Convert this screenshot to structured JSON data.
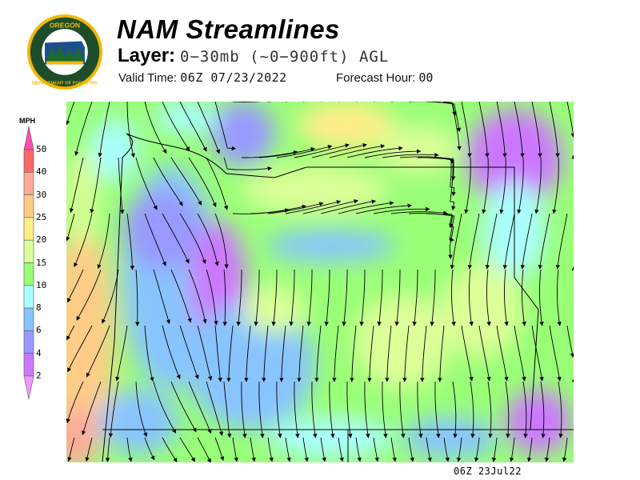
{
  "logo": {
    "text_top": "OREGON",
    "text_bottom": "DEPARTMENT OF FORESTRY",
    "colors": {
      "ring": "#f2b700",
      "field": "#1d4d2a",
      "sky": "#1f4f8f"
    }
  },
  "header": {
    "title": "NAM Streamlines",
    "layer_label": "Layer:",
    "layer_value": "0−30mb (~0−900ft) AGL",
    "valid_label": "Valid Time:",
    "valid_value": "06Z 07/23/2022",
    "forecast_label": "Forecast Hour:",
    "forecast_value": "00"
  },
  "legend": {
    "unit": "MPH",
    "labels": [
      "50",
      "40",
      "30",
      "25",
      "20",
      "15",
      "10",
      "8",
      "6",
      "4",
      "2"
    ],
    "colors": [
      "#ff4fb0",
      "#ff6666",
      "#ffaa99",
      "#ffcc88",
      "#ffee88",
      "#ddff99",
      "#99ff77",
      "#aaffff",
      "#88c4ff",
      "#9999ff",
      "#cc77ff",
      "#ee99ff"
    ]
  },
  "map": {
    "field": "wind speed streamlines",
    "region": "Oregon"
  },
  "footer": {
    "stamp": "06Z 23Jul22"
  }
}
